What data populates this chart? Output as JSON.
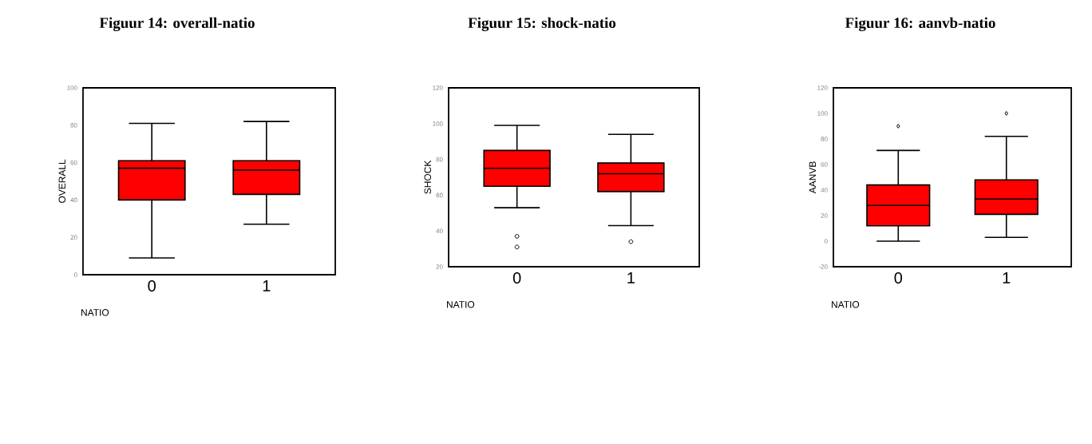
{
  "chart_data": [
    {
      "type": "box",
      "title": "Figuur 14: overall-natio",
      "xlabel": "NATIO",
      "ylabel": "OVERALL",
      "categories": [
        "0",
        "1"
      ],
      "ylim": [
        0,
        100
      ],
      "yticks": [
        0,
        20,
        40,
        60,
        80,
        100
      ],
      "marker": "circle",
      "series": [
        {
          "color": "#ff0000",
          "boxes": [
            {
              "low": 9,
              "q1": 40,
              "median": 57,
              "q3": 61,
              "high": 81
            },
            {
              "low": 27,
              "q1": 43,
              "median": 56,
              "q3": 61,
              "high": 82
            }
          ]
        }
      ]
    },
    {
      "type": "box",
      "title": "Figuur 15: shock-natio",
      "xlabel": "NATIO",
      "ylabel": "SHOCK",
      "categories": [
        "0",
        "1"
      ],
      "ylim": [
        20,
        120
      ],
      "yticks": [
        20,
        40,
        60,
        80,
        100,
        120
      ],
      "marker": "circle",
      "series": [
        {
          "color": "#ff0000",
          "boxes": [
            {
              "low": 53,
              "q1": 65,
              "median": 75,
              "q3": 85,
              "high": 99,
              "outliers": [
                37,
                31
              ]
            },
            {
              "low": 43,
              "q1": 62,
              "median": 72,
              "q3": 78,
              "high": 94,
              "outliers": [
                34
              ]
            }
          ]
        }
      ]
    },
    {
      "type": "box",
      "title": "Figuur 16: aanvb-natio",
      "xlabel": "NATIO",
      "ylabel": "AANVB",
      "categories": [
        "0",
        "1"
      ],
      "ylim": [
        -20,
        120
      ],
      "yticks": [
        -20,
        0,
        20,
        40,
        60,
        80,
        100,
        120
      ],
      "marker": "diamond",
      "series": [
        {
          "color": "#ff0000",
          "boxes": [
            {
              "low": 0,
              "q1": 12,
              "median": 28,
              "q3": 44,
              "high": 71,
              "outliers": [
                90
              ]
            },
            {
              "low": 3,
              "q1": 21,
              "median": 33,
              "q3": 48,
              "high": 82,
              "outliers": [
                100
              ]
            }
          ]
        }
      ]
    }
  ]
}
